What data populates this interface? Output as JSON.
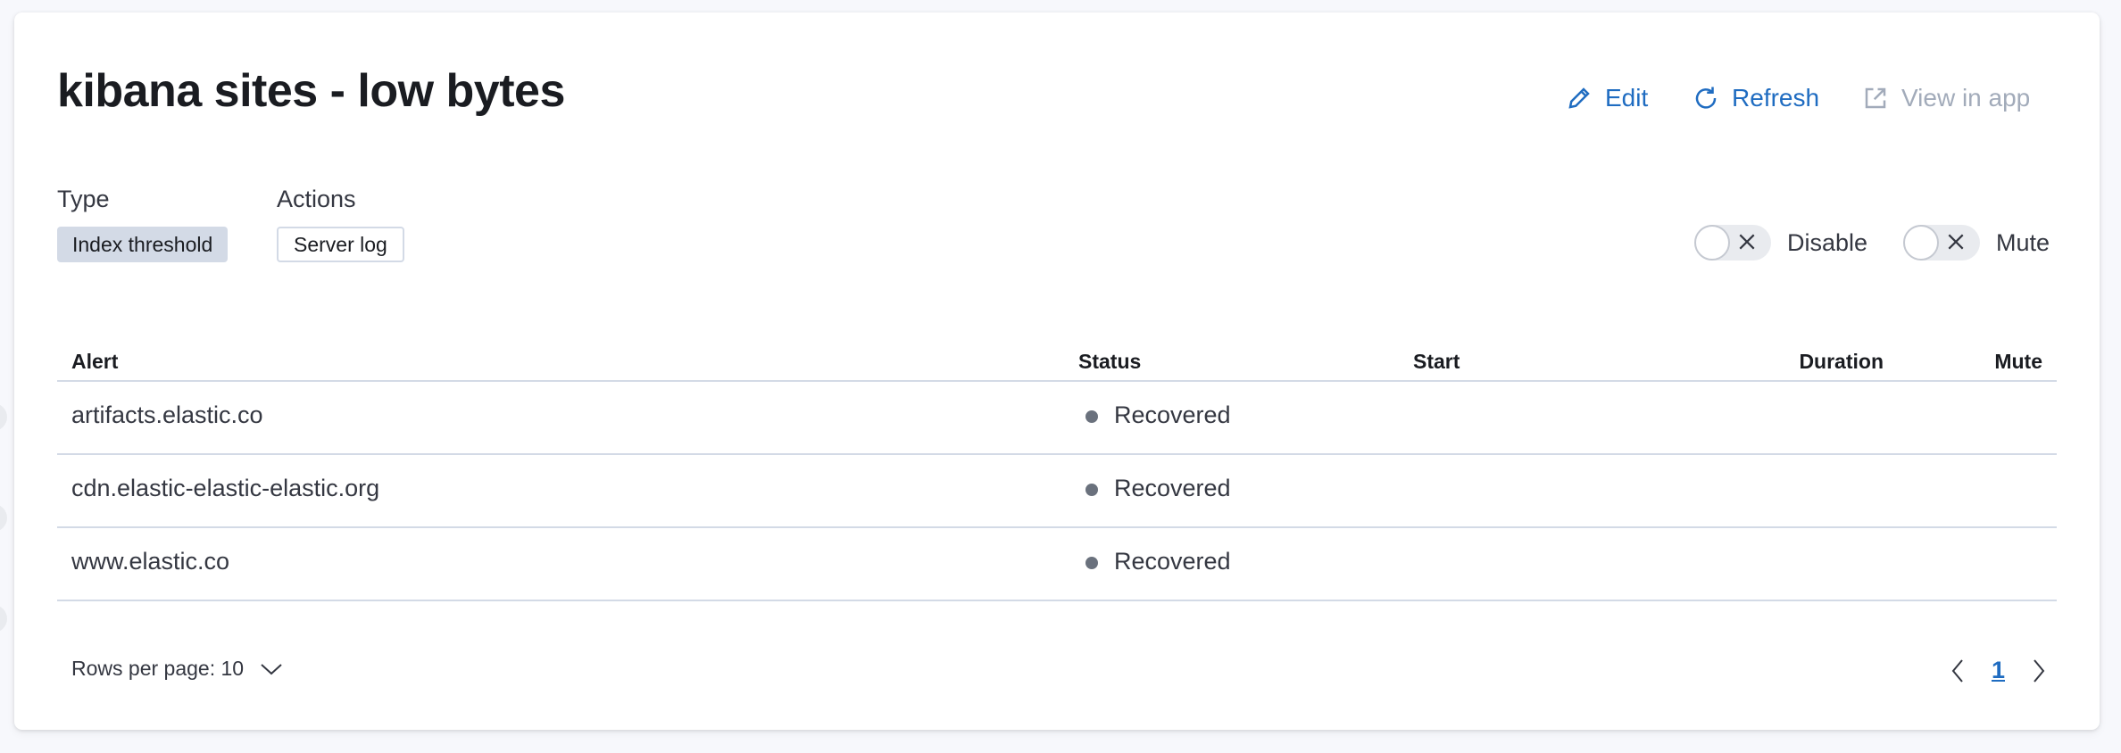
{
  "header": {
    "title": "kibana sites - low bytes",
    "edit_label": "Edit",
    "refresh_label": "Refresh",
    "view_in_app_label": "View in app"
  },
  "meta": {
    "type_label": "Type",
    "type_value": "Index threshold",
    "actions_label": "Actions",
    "actions_value": "Server log"
  },
  "toggles": {
    "disable_label": "Disable",
    "disable_on": false,
    "mute_label": "Mute",
    "mute_on": false
  },
  "table": {
    "columns": [
      "Alert",
      "Status",
      "Start",
      "Duration",
      "Mute"
    ],
    "rows": [
      {
        "alert": "artifacts.elastic.co",
        "status": "Recovered",
        "start": "",
        "duration": "",
        "muted": false
      },
      {
        "alert": "cdn.elastic-elastic-elastic.org",
        "status": "Recovered",
        "start": "",
        "duration": "",
        "muted": false
      },
      {
        "alert": "www.elastic.co",
        "status": "Recovered",
        "start": "",
        "duration": "",
        "muted": false
      }
    ]
  },
  "pagination": {
    "rows_per_page": "Rows per page: 10",
    "current_page": "1"
  },
  "colors": {
    "link": "#1f6cc1",
    "disabled_link": "#a2abba",
    "status_dot": "#6a717d",
    "badge_bg": "#d3dae6"
  }
}
